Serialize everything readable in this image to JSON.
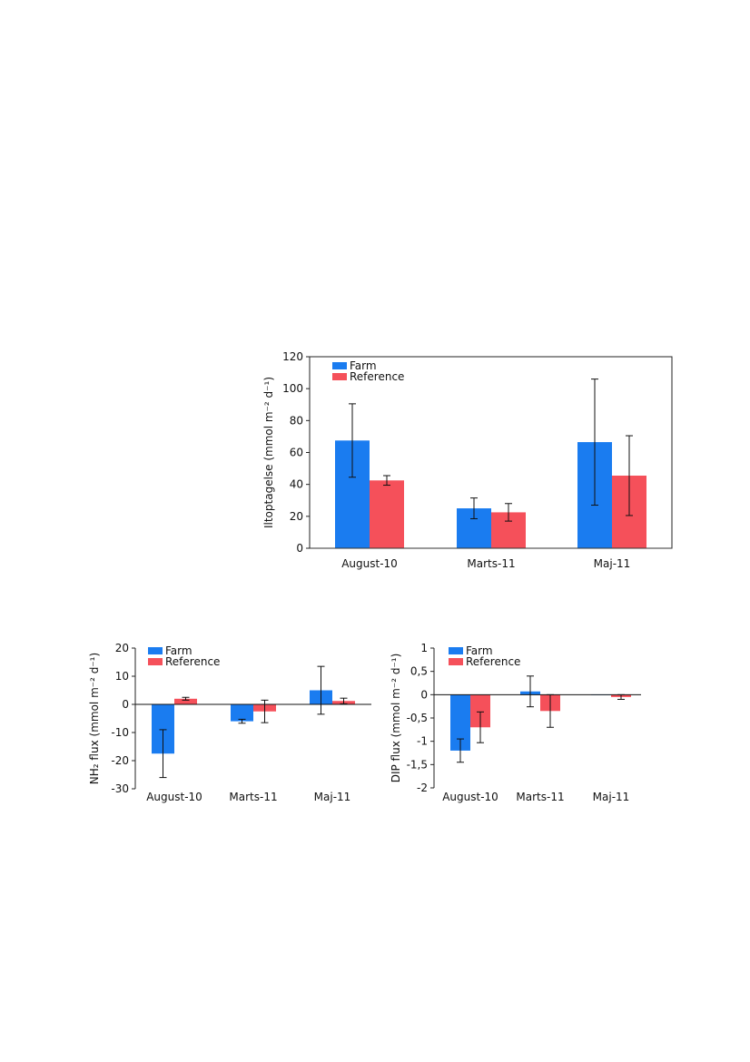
{
  "colors": {
    "farm": "#1a7cf0",
    "reference": "#f5505a"
  },
  "chart_data": [
    {
      "type": "bar",
      "ylabel": "Iltoptagelse (mmol m⁻² d⁻¹)",
      "ylim": [
        0,
        120
      ],
      "yticks": [
        "0",
        "20",
        "40",
        "60",
        "80",
        "100",
        "120"
      ],
      "legend_position": "top-left",
      "categories": [
        "August-10",
        "Marts-11",
        "Maj-11"
      ],
      "series": [
        {
          "name": "Farm",
          "values": [
            67.5,
            25,
            66.5
          ],
          "errors": [
            23,
            6.5,
            39.5
          ]
        },
        {
          "name": "Reference",
          "values": [
            42.5,
            22.5,
            45.5
          ],
          "errors": [
            3,
            5.5,
            25
          ]
        }
      ]
    },
    {
      "type": "bar",
      "ylabel": "NH₂ flux (mmol m⁻² d⁻¹)",
      "ylim": [
        -30,
        20
      ],
      "yticks": [
        "-30",
        "-20",
        "-10",
        "0",
        "10",
        "20"
      ],
      "legend_position": "top-left",
      "categories": [
        "August-10",
        "Marts-11",
        "Maj-11"
      ],
      "series": [
        {
          "name": "Farm",
          "values": [
            -17.5,
            -6,
            5
          ],
          "errors": [
            8.5,
            0.7,
            8.5
          ]
        },
        {
          "name": "Reference",
          "values": [
            2,
            -2.5,
            1.2
          ],
          "errors": [
            0.5,
            4,
            1
          ]
        }
      ]
    },
    {
      "type": "bar",
      "ylabel": "DIP flux (mmol m⁻² d⁻¹)",
      "ylim": [
        -2,
        1
      ],
      "yticks": [
        "-2",
        "-1,5",
        "-1",
        "-0,5",
        "0",
        "0,5",
        "1"
      ],
      "legend_position": "top-left",
      "categories": [
        "August-10",
        "Marts-11",
        "Maj-11"
      ],
      "series": [
        {
          "name": "Farm",
          "values": [
            -1.2,
            0.07,
            0
          ],
          "errors": [
            0.25,
            0.33,
            0
          ]
        },
        {
          "name": "Reference",
          "values": [
            -0.7,
            -0.35,
            -0.05
          ],
          "errors": [
            0.33,
            0.35,
            0.05
          ]
        }
      ]
    }
  ]
}
